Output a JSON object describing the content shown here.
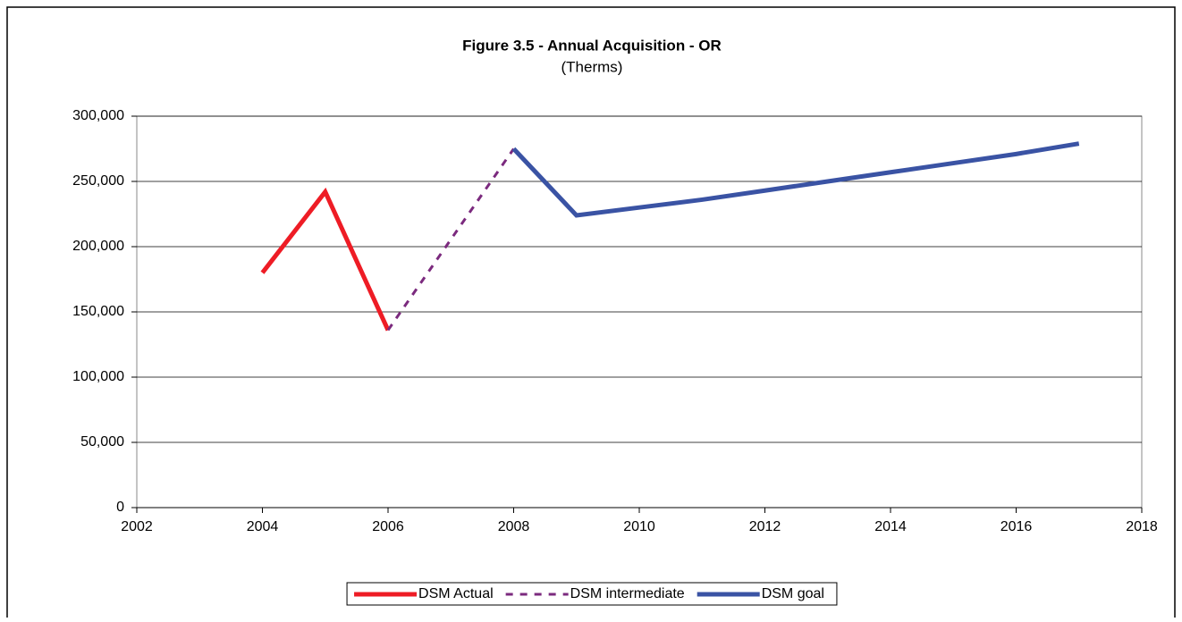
{
  "chart_data": {
    "type": "line",
    "title": "Figure 3.5 - Annual Acquisition - OR",
    "subtitle": "(Therms)",
    "xlim": [
      2002,
      2018
    ],
    "xticks": [
      2002,
      2004,
      2006,
      2008,
      2010,
      2012,
      2014,
      2016,
      2018
    ],
    "ylim": [
      0,
      300000
    ],
    "yticks": [
      0,
      {
        "value": 50000,
        "label": "50,000"
      },
      {
        "value": 100000,
        "label": "100,000"
      },
      {
        "value": 150000,
        "label": "150,000"
      },
      {
        "value": 200000,
        "label": "200,000"
      },
      {
        "value": 250000,
        "label": "250,000"
      },
      {
        "value": 300000,
        "label": "300,000"
      }
    ],
    "grid": true,
    "legend": "bottom",
    "series": [
      {
        "name": "DSM Actual",
        "color": "#ee1c25",
        "line_style": "solid",
        "x": [
          2004,
          2005,
          2006
        ],
        "values": [
          180000,
          242000,
          136000
        ]
      },
      {
        "name": "DSM intermediate",
        "color": "#7b2a7e",
        "line_style": "dashed",
        "x": [
          2006,
          2008
        ],
        "values": [
          136000,
          275000
        ]
      },
      {
        "name": "DSM goal",
        "color": "#3a53a4",
        "line_style": "solid",
        "x": [
          2008,
          2009,
          2010,
          2011,
          2012,
          2013,
          2014,
          2015,
          2016,
          2017
        ],
        "values": [
          275000,
          224000,
          230000,
          236000,
          243000,
          250000,
          257000,
          264000,
          271000,
          279000
        ]
      }
    ]
  }
}
